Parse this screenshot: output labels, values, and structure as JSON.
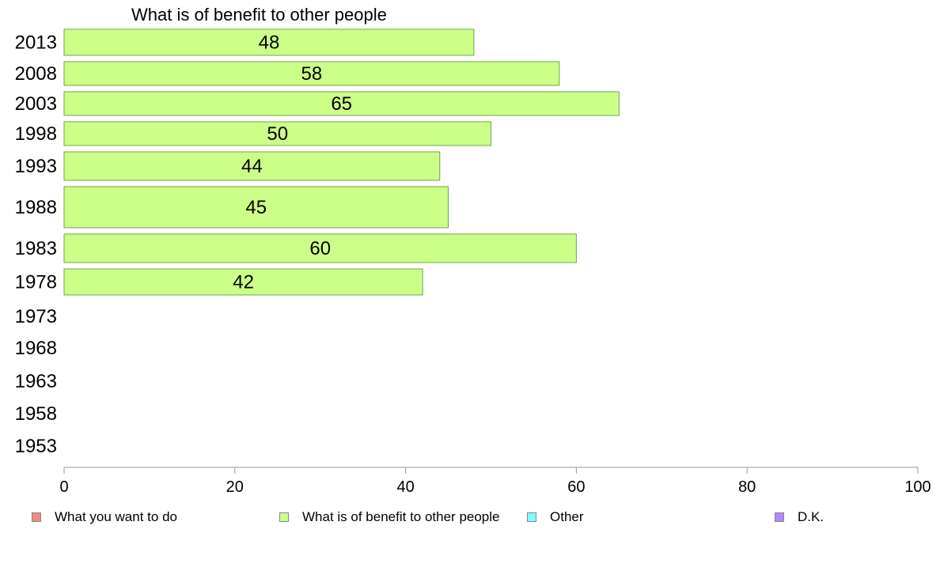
{
  "chart_data": {
    "type": "bar",
    "orientation": "horizontal",
    "title": "What is of benefit to other people",
    "categories": [
      "2013",
      "2008",
      "2003",
      "1998",
      "1993",
      "1988",
      "1983",
      "1978",
      "1973",
      "1968",
      "1963",
      "1958",
      "1953"
    ],
    "series": [
      {
        "name": "What is of benefit to other people",
        "values": [
          48,
          58,
          65,
          50,
          44,
          45,
          60,
          42,
          null,
          null,
          null,
          null,
          null
        ]
      }
    ],
    "xlim": [
      0,
      100
    ],
    "xticks": [
      "0",
      "20",
      "40",
      "60",
      "80",
      "100"
    ],
    "legend": [
      {
        "label": "What you want to do",
        "color": "#f28b82"
      },
      {
        "label": "What is of benefit to other people",
        "color": "#ccff88"
      },
      {
        "label": "Other",
        "color": "#80ffff"
      },
      {
        "label": "D.K.",
        "color": "#b388ff"
      }
    ],
    "legend_position": "bottom",
    "bar_color": "#ccff88",
    "bar_edge_color": "#6aa84f",
    "grid": false
  }
}
